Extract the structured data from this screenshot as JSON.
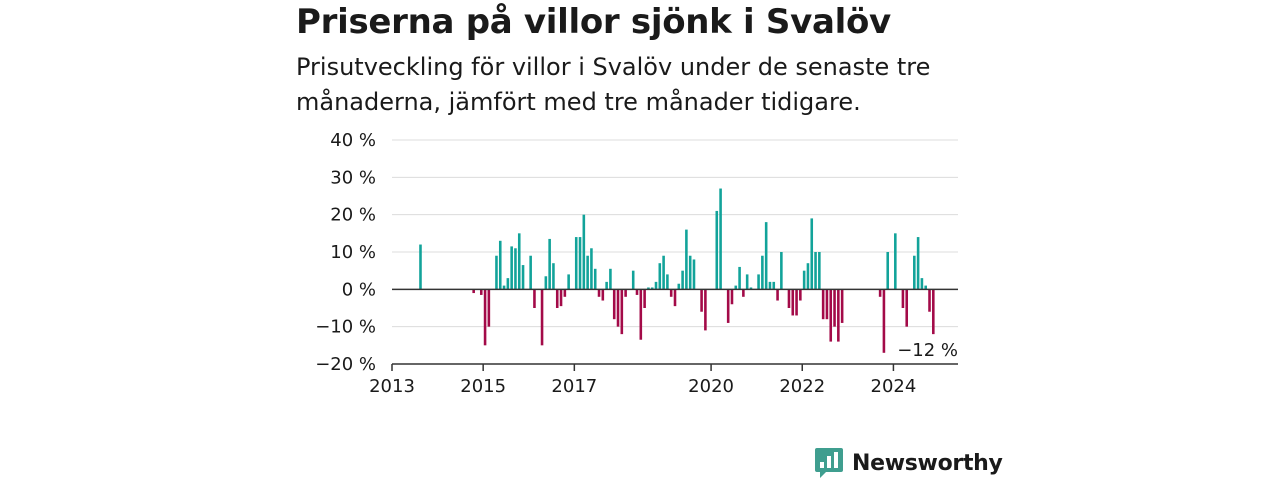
{
  "title": "Priserna på villor sjönk i Svalöv",
  "subtitle": "Prisutveckling för villor i Svalöv under de senaste tre månaderna, jämfört med tre månader tidigare.",
  "brand": {
    "name": "Newsworthy",
    "icon": "newsworthy-logo-icon",
    "color": "#3f9e8f"
  },
  "colors": {
    "positive": "#12a39a",
    "negative": "#a30a48",
    "grid": "#dcdcdc",
    "axis": "#333333"
  },
  "chart_data": {
    "type": "bar",
    "title": "",
    "xlabel": "",
    "ylabel": "",
    "ylim": [
      -20,
      40
    ],
    "y_ticks": [
      40,
      30,
      20,
      10,
      0,
      -10,
      -20
    ],
    "y_tick_labels": [
      "40 %",
      "30 %",
      "20 %",
      "10 %",
      "0 %",
      "−10 %",
      "−20 %"
    ],
    "x_ticks": [
      "2013",
      "2015",
      "2017",
      "2020",
      "2022",
      "2024"
    ],
    "x_tick_dates": [
      "2013-01",
      "2015-01",
      "2017-01",
      "2020-01",
      "2022-01",
      "2024-01"
    ],
    "xlim": [
      "2013-01",
      "2025-06"
    ],
    "grid": true,
    "end_label": "−12 %",
    "series": [
      {
        "unit": "%",
        "points": [
          [
            "2013-08",
            12
          ],
          [
            "2014-10",
            -1
          ],
          [
            "2014-12",
            -1.5
          ],
          [
            "2015-01",
            -15
          ],
          [
            "2015-02",
            -10
          ],
          [
            "2015-04",
            9
          ],
          [
            "2015-05",
            13
          ],
          [
            "2015-06",
            1
          ],
          [
            "2015-07",
            3
          ],
          [
            "2015-08",
            11.5
          ],
          [
            "2015-09",
            11
          ],
          [
            "2015-10",
            15
          ],
          [
            "2015-11",
            6.5
          ],
          [
            "2015-12",
            0
          ],
          [
            "2016-01",
            9
          ],
          [
            "2016-02",
            -5
          ],
          [
            "2016-04",
            -15
          ],
          [
            "2016-05",
            3.5
          ],
          [
            "2016-06",
            13.5
          ],
          [
            "2016-07",
            7
          ],
          [
            "2016-08",
            -5
          ],
          [
            "2016-09",
            -4.5
          ],
          [
            "2016-10",
            -2
          ],
          [
            "2016-11",
            4
          ],
          [
            "2017-01",
            14
          ],
          [
            "2017-02",
            14
          ],
          [
            "2017-03",
            20
          ],
          [
            "2017-04",
            9
          ],
          [
            "2017-05",
            11
          ],
          [
            "2017-06",
            5.5
          ],
          [
            "2017-07",
            -2
          ],
          [
            "2017-08",
            -3
          ],
          [
            "2017-09",
            2
          ],
          [
            "2017-10",
            5.5
          ],
          [
            "2017-11",
            -8
          ],
          [
            "2017-12",
            -10
          ],
          [
            "2018-01",
            -12
          ],
          [
            "2018-02",
            -2
          ],
          [
            "2018-04",
            5
          ],
          [
            "2018-05",
            -1.5
          ],
          [
            "2018-06",
            -13.5
          ],
          [
            "2018-07",
            -5
          ],
          [
            "2018-08",
            0.5
          ],
          [
            "2018-09",
            0.5
          ],
          [
            "2018-10",
            2
          ],
          [
            "2018-11",
            7
          ],
          [
            "2018-12",
            9
          ],
          [
            "2019-01",
            4
          ],
          [
            "2019-02",
            -2
          ],
          [
            "2019-03",
            -4.5
          ],
          [
            "2019-04",
            1.5
          ],
          [
            "2019-05",
            5
          ],
          [
            "2019-06",
            16
          ],
          [
            "2019-07",
            9
          ],
          [
            "2019-08",
            8
          ],
          [
            "2019-10",
            -6
          ],
          [
            "2019-11",
            -11
          ],
          [
            "2020-02",
            21
          ],
          [
            "2020-03",
            27
          ],
          [
            "2020-05",
            -9
          ],
          [
            "2020-06",
            -4
          ],
          [
            "2020-07",
            1
          ],
          [
            "2020-08",
            6
          ],
          [
            "2020-09",
            -2
          ],
          [
            "2020-10",
            4
          ],
          [
            "2020-11",
            0.5
          ],
          [
            "2021-01",
            4
          ],
          [
            "2021-02",
            9
          ],
          [
            "2021-03",
            18
          ],
          [
            "2021-04",
            2
          ],
          [
            "2021-05",
            2
          ],
          [
            "2021-06",
            -3
          ],
          [
            "2021-07",
            10
          ],
          [
            "2021-09",
            -5
          ],
          [
            "2021-10",
            -7
          ],
          [
            "2021-11",
            -7
          ],
          [
            "2021-12",
            -3
          ],
          [
            "2022-01",
            5
          ],
          [
            "2022-02",
            7
          ],
          [
            "2022-03",
            19
          ],
          [
            "2022-04",
            10
          ],
          [
            "2022-05",
            10
          ],
          [
            "2022-06",
            -8
          ],
          [
            "2022-07",
            -8
          ],
          [
            "2022-08",
            -14
          ],
          [
            "2022-09",
            -10
          ],
          [
            "2022-10",
            -14
          ],
          [
            "2022-11",
            -9
          ],
          [
            "2023-09",
            -2
          ],
          [
            "2023-10",
            -17
          ],
          [
            "2023-11",
            10
          ],
          [
            "2024-01",
            15
          ],
          [
            "2024-03",
            -5
          ],
          [
            "2024-04",
            -10
          ],
          [
            "2024-06",
            9
          ],
          [
            "2024-07",
            14
          ],
          [
            "2024-08",
            3
          ],
          [
            "2024-09",
            1
          ],
          [
            "2024-10",
            -6
          ],
          [
            "2024-11",
            -12
          ]
        ]
      }
    ]
  }
}
